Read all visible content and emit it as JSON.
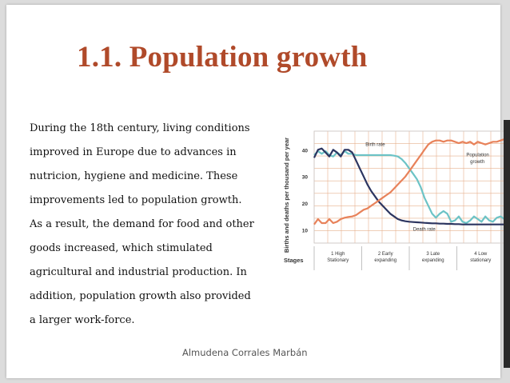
{
  "slide": {
    "title": "1.1. Population growth",
    "body_lines": [
      "During the 18th century, living conditions",
      "improved in Europe due to advances in",
      "nutricion, hygiene and medicine. These",
      "improvements led to population growth.",
      "As a result, the demand for food and other",
      "goods increased, which stimulated",
      "agricultural and industrial production. In",
      "addition, population growth also provided",
      "a larger work-force."
    ],
    "footer": "Almudena Corrales Marbán"
  },
  "chart_data": {
    "type": "line",
    "ylabel": "Births and deaths per thousand per year",
    "xlabel": "Stages",
    "ylim": [
      5,
      47
    ],
    "xlim": [
      0,
      100
    ],
    "yticks": [
      10,
      20,
      30,
      40
    ],
    "grid": true,
    "stage_labels": [
      [
        "1 High",
        "Stationary"
      ],
      [
        "2 Early",
        "expanding"
      ],
      [
        "3 Late",
        "expanding"
      ],
      [
        "4 Low",
        "stationary"
      ]
    ],
    "colors": {
      "birth_rate": "#6cc3c6",
      "death_rate": "#2c3560",
      "population": "#e8825a",
      "grid": "#e6b08e"
    },
    "series": [
      {
        "name": "Birth rate",
        "key": "birth_rate",
        "label": "Birth rate",
        "x": [
          0,
          2,
          4,
          6,
          8,
          10,
          12,
          14,
          16,
          18,
          20,
          22,
          24,
          26,
          28,
          30,
          32,
          34,
          36,
          38,
          40,
          42,
          44,
          46,
          48,
          50,
          52,
          54,
          56,
          58,
          60,
          62,
          64,
          66,
          68,
          70,
          72,
          74,
          76,
          78,
          80,
          82,
          84,
          86,
          88,
          90,
          92,
          94,
          96,
          98,
          100
        ],
        "y": [
          38,
          39.5,
          38.5,
          39.5,
          38,
          37.5,
          39,
          38,
          39.5,
          38.5,
          38.5,
          38,
          38,
          38,
          38,
          38,
          38,
          38,
          38,
          38,
          38,
          37.8,
          37.5,
          36.5,
          35,
          33,
          31,
          29,
          26,
          22,
          19,
          16,
          14.5,
          16,
          17,
          16,
          13,
          13.5,
          15,
          13,
          12.5,
          13.5,
          15,
          14,
          13,
          15,
          13.5,
          13,
          14.5,
          15,
          14
        ]
      },
      {
        "name": "Death rate",
        "key": "death_rate",
        "label": "Death rate",
        "x": [
          0,
          2,
          4,
          6,
          8,
          10,
          12,
          14,
          16,
          18,
          20,
          22,
          24,
          26,
          28,
          30,
          32,
          34,
          36,
          38,
          40,
          42,
          44,
          46,
          48,
          50,
          52,
          54,
          56,
          58,
          60,
          62,
          64,
          66,
          68,
          70,
          72,
          74,
          76,
          78,
          80,
          82,
          84,
          86,
          88,
          90,
          92,
          94,
          96,
          98,
          100
        ],
        "y": [
          37,
          40,
          40.5,
          39,
          37.5,
          40,
          39,
          37.5,
          40,
          40,
          39,
          36,
          33,
          30,
          27,
          24.5,
          22.5,
          20.5,
          19,
          17.5,
          16,
          15,
          14,
          13.5,
          13.2,
          13,
          12.9,
          12.8,
          12.7,
          12.6,
          12.5,
          12.4,
          12.4,
          12.3,
          12.3,
          12.2,
          12.2,
          12.1,
          12.1,
          12,
          12,
          12,
          12,
          12,
          12,
          12,
          12,
          12,
          12,
          12,
          12
        ]
      },
      {
        "name": "Population growth",
        "key": "population",
        "label": "Population growth",
        "x": [
          0,
          2,
          4,
          6,
          8,
          10,
          12,
          14,
          16,
          18,
          20,
          22,
          24,
          26,
          28,
          30,
          32,
          34,
          36,
          38,
          40,
          42,
          44,
          46,
          48,
          50,
          52,
          54,
          56,
          58,
          60,
          62,
          64,
          66,
          68,
          70,
          72,
          74,
          76,
          78,
          80,
          82,
          84,
          86,
          88,
          90,
          92,
          94,
          96,
          98,
          100
        ],
        "y": [
          12,
          14,
          12.5,
          12.5,
          14,
          12.5,
          13,
          14,
          14.5,
          14.8,
          15,
          15.5,
          16.5,
          17.5,
          18,
          19,
          20,
          21,
          22,
          23,
          24,
          25.5,
          27,
          28.5,
          30,
          32,
          34,
          36,
          38,
          40,
          42,
          43,
          43.5,
          43.5,
          43,
          43.5,
          43.5,
          43,
          42.5,
          43,
          42.5,
          43,
          42,
          43,
          42.5,
          42,
          42.5,
          43,
          43,
          43.5,
          44
        ]
      }
    ]
  }
}
